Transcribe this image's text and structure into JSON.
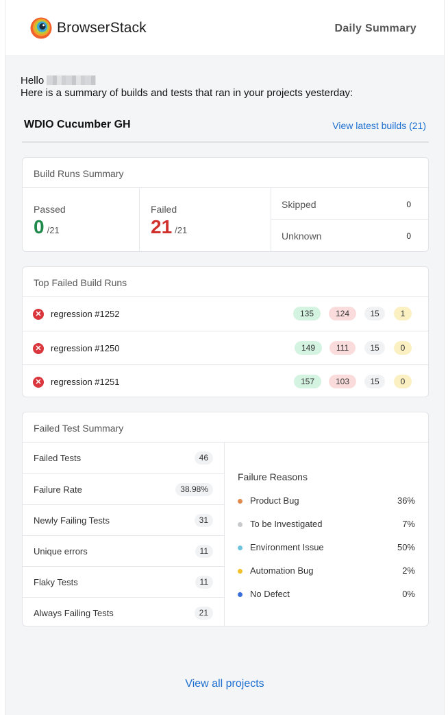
{
  "header": {
    "brand": "BrowserStack",
    "title": "Daily Summary"
  },
  "greeting": {
    "hello": "Hello",
    "intro": "Here is a summary of builds and tests that ran in your projects yesterday:"
  },
  "project": {
    "name": "WDIO Cucumber GH",
    "view_builds_label": "View latest builds (21)"
  },
  "build_runs_summary": {
    "title": "Build Runs Summary",
    "passed": {
      "label": "Passed",
      "count": "0",
      "total": "/21"
    },
    "failed": {
      "label": "Failed",
      "count": "21",
      "total": "/21"
    },
    "skipped": {
      "label": "Skipped",
      "count": "0"
    },
    "unknown": {
      "label": "Unknown",
      "count": "0"
    }
  },
  "top_failed_build_runs": {
    "title": "Top Failed Build Runs",
    "rows": [
      {
        "name": "regression #1252",
        "passed": "135",
        "failed": "124",
        "skipped": "15",
        "other": "1"
      },
      {
        "name": "regression #1250",
        "passed": "149",
        "failed": "111",
        "skipped": "15",
        "other": "0"
      },
      {
        "name": "regression #1251",
        "passed": "157",
        "failed": "103",
        "skipped": "15",
        "other": "0"
      }
    ]
  },
  "failed_test_summary": {
    "title": "Failed Test Summary",
    "metrics": [
      {
        "label": "Failed Tests",
        "value": "46"
      },
      {
        "label": "Failure Rate",
        "value": "38.98%"
      },
      {
        "label": "Newly Failing Tests",
        "value": "31"
      },
      {
        "label": "Unique errors",
        "value": "11"
      },
      {
        "label": "Flaky Tests",
        "value": "11"
      },
      {
        "label": "Always Failing Tests",
        "value": "21"
      }
    ],
    "failure_reasons": {
      "title": "Failure Reasons",
      "items": [
        {
          "label": "Product Bug",
          "value": "36%",
          "color": "#e08a4e"
        },
        {
          "label": "To be Investigated",
          "value": "7%",
          "color": "#c8c9cc"
        },
        {
          "label": "Environment Issue",
          "value": "50%",
          "color": "#6fc3dc"
        },
        {
          "label": "Automation Bug",
          "value": "2%",
          "color": "#f2c12e"
        },
        {
          "label": "No Defect",
          "value": "0%",
          "color": "#3a6fd8"
        }
      ]
    }
  },
  "footer": {
    "view_all_label": "View all projects"
  }
}
